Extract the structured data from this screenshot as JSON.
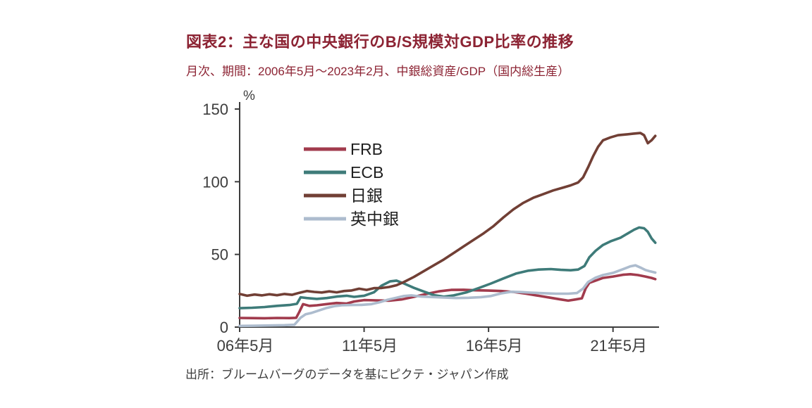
{
  "header": {
    "title": "図表2：主な国の中央銀行のB/S規模対GDP比率の推移",
    "subtitle": "月次、期間：2006年5月～2023年2月、中銀総資産/GDP（国内総生産）"
  },
  "footer": {
    "source": "出所：ブルームバーグのデータを基にピクテ・ジャパン作成"
  },
  "chart_data": {
    "type": "line",
    "title": "図表2：主な国の中央銀行のB/S規模対GDP比率の推移",
    "subtitle": "月次、期間：2006年5月～2023年2月、中銀総資産/GDP（国内総生産）",
    "unit_label": "%",
    "xlabel": "",
    "ylabel": "",
    "ylim": [
      0,
      150
    ],
    "yticks": [
      0,
      50,
      100,
      150
    ],
    "x_range": [
      2006.4,
      2023.25
    ],
    "xticks": [
      {
        "pos": 2006.4,
        "label": "06年5月"
      },
      {
        "pos": 2011.4,
        "label": "11年5月"
      },
      {
        "pos": 2016.4,
        "label": "16年5月"
      },
      {
        "pos": 2021.4,
        "label": "21年5月"
      }
    ],
    "grid": false,
    "legend_position": "inside-upper-left",
    "axis_color": "#3d3d3d",
    "series": [
      {
        "key": "frb",
        "name": "FRB",
        "color": "#a13b4d",
        "points": [
          [
            2006.4,
            6.3
          ],
          [
            2006.9,
            6.2
          ],
          [
            2007.4,
            6.1
          ],
          [
            2007.9,
            6.3
          ],
          [
            2008.4,
            6.2
          ],
          [
            2008.67,
            6.4
          ],
          [
            2008.8,
            10.5
          ],
          [
            2008.95,
            15.8
          ],
          [
            2009.2,
            14.6
          ],
          [
            2009.5,
            15.0
          ],
          [
            2009.9,
            15.8
          ],
          [
            2010.3,
            16.6
          ],
          [
            2010.7,
            16.2
          ],
          [
            2011.0,
            17.6
          ],
          [
            2011.4,
            18.6
          ],
          [
            2011.9,
            18.4
          ],
          [
            2012.4,
            18.2
          ],
          [
            2012.9,
            19.0
          ],
          [
            2013.4,
            20.8
          ],
          [
            2013.9,
            22.8
          ],
          [
            2014.4,
            24.6
          ],
          [
            2014.9,
            25.6
          ],
          [
            2015.4,
            25.7
          ],
          [
            2015.9,
            25.3
          ],
          [
            2016.4,
            25.1
          ],
          [
            2016.9,
            24.8
          ],
          [
            2017.4,
            24.2
          ],
          [
            2017.9,
            23.0
          ],
          [
            2018.4,
            21.6
          ],
          [
            2018.9,
            20.2
          ],
          [
            2019.3,
            19.0
          ],
          [
            2019.6,
            18.2
          ],
          [
            2019.9,
            19.0
          ],
          [
            2020.15,
            19.8
          ],
          [
            2020.3,
            26.5
          ],
          [
            2020.45,
            30.5
          ],
          [
            2020.7,
            32.0
          ],
          [
            2021.0,
            33.8
          ],
          [
            2021.4,
            34.8
          ],
          [
            2021.8,
            36.0
          ],
          [
            2022.1,
            36.4
          ],
          [
            2022.4,
            35.8
          ],
          [
            2022.7,
            34.8
          ],
          [
            2022.95,
            33.8
          ],
          [
            2023.1,
            33.0
          ]
        ]
      },
      {
        "key": "ecb",
        "name": "ECB",
        "color": "#3e7b79",
        "points": [
          [
            2006.4,
            13.0
          ],
          [
            2006.9,
            13.3
          ],
          [
            2007.4,
            13.8
          ],
          [
            2007.9,
            14.6
          ],
          [
            2008.4,
            15.2
          ],
          [
            2008.7,
            16.0
          ],
          [
            2008.85,
            20.5
          ],
          [
            2009.1,
            20.0
          ],
          [
            2009.5,
            19.4
          ],
          [
            2009.9,
            20.0
          ],
          [
            2010.3,
            21.0
          ],
          [
            2010.7,
            21.6
          ],
          [
            2011.0,
            20.8
          ],
          [
            2011.4,
            21.6
          ],
          [
            2011.8,
            24.0
          ],
          [
            2012.1,
            28.5
          ],
          [
            2012.45,
            31.5
          ],
          [
            2012.7,
            32.0
          ],
          [
            2013.0,
            30.0
          ],
          [
            2013.4,
            27.0
          ],
          [
            2013.8,
            24.5
          ],
          [
            2014.2,
            22.0
          ],
          [
            2014.6,
            20.9
          ],
          [
            2015.0,
            21.8
          ],
          [
            2015.5,
            23.8
          ],
          [
            2016.0,
            26.8
          ],
          [
            2016.5,
            30.0
          ],
          [
            2017.0,
            33.5
          ],
          [
            2017.5,
            36.8
          ],
          [
            2018.0,
            38.8
          ],
          [
            2018.4,
            39.6
          ],
          [
            2018.9,
            39.9
          ],
          [
            2019.3,
            39.4
          ],
          [
            2019.7,
            39.1
          ],
          [
            2020.0,
            39.6
          ],
          [
            2020.25,
            42.0
          ],
          [
            2020.45,
            48.0
          ],
          [
            2020.7,
            52.5
          ],
          [
            2021.0,
            56.5
          ],
          [
            2021.3,
            59.0
          ],
          [
            2021.7,
            61.5
          ],
          [
            2022.0,
            64.5
          ],
          [
            2022.25,
            67.0
          ],
          [
            2022.45,
            68.5
          ],
          [
            2022.65,
            68.0
          ],
          [
            2022.8,
            65.5
          ],
          [
            2022.95,
            61.0
          ],
          [
            2023.1,
            58.0
          ]
        ]
      },
      {
        "key": "boj",
        "name": "日銀",
        "color": "#713f35",
        "points": [
          [
            2006.4,
            22.8
          ],
          [
            2006.7,
            21.6
          ],
          [
            2007.0,
            22.4
          ],
          [
            2007.3,
            21.8
          ],
          [
            2007.6,
            22.6
          ],
          [
            2007.9,
            21.9
          ],
          [
            2008.2,
            22.8
          ],
          [
            2008.5,
            22.2
          ],
          [
            2008.8,
            23.6
          ],
          [
            2009.1,
            24.8
          ],
          [
            2009.4,
            24.2
          ],
          [
            2009.7,
            23.8
          ],
          [
            2010.0,
            24.6
          ],
          [
            2010.3,
            23.9
          ],
          [
            2010.6,
            24.8
          ],
          [
            2010.9,
            25.2
          ],
          [
            2011.2,
            26.4
          ],
          [
            2011.5,
            25.6
          ],
          [
            2011.8,
            26.8
          ],
          [
            2012.1,
            26.9
          ],
          [
            2012.4,
            27.6
          ],
          [
            2012.7,
            28.8
          ],
          [
            2013.0,
            31.0
          ],
          [
            2013.4,
            34.5
          ],
          [
            2013.8,
            38.5
          ],
          [
            2014.2,
            42.5
          ],
          [
            2014.6,
            46.5
          ],
          [
            2015.0,
            51.0
          ],
          [
            2015.4,
            55.5
          ],
          [
            2015.8,
            60.0
          ],
          [
            2016.2,
            64.5
          ],
          [
            2016.6,
            69.5
          ],
          [
            2017.0,
            75.5
          ],
          [
            2017.4,
            81.0
          ],
          [
            2017.8,
            85.5
          ],
          [
            2018.2,
            89.0
          ],
          [
            2018.6,
            91.5
          ],
          [
            2019.0,
            94.0
          ],
          [
            2019.4,
            96.0
          ],
          [
            2019.7,
            97.5
          ],
          [
            2020.0,
            99.5
          ],
          [
            2020.2,
            103.0
          ],
          [
            2020.4,
            110.0
          ],
          [
            2020.6,
            117.5
          ],
          [
            2020.8,
            124.0
          ],
          [
            2021.0,
            128.5
          ],
          [
            2021.3,
            130.5
          ],
          [
            2021.6,
            132.0
          ],
          [
            2021.9,
            132.5
          ],
          [
            2022.2,
            133.0
          ],
          [
            2022.5,
            133.5
          ],
          [
            2022.65,
            132.0
          ],
          [
            2022.8,
            126.5
          ],
          [
            2022.95,
            128.5
          ],
          [
            2023.1,
            131.5
          ]
        ]
      },
      {
        "key": "boe",
        "name": "英中銀",
        "color": "#adbcce",
        "points": [
          [
            2006.4,
            0.8
          ],
          [
            2007.0,
            0.9
          ],
          [
            2007.6,
            1.1
          ],
          [
            2008.2,
            1.3
          ],
          [
            2008.6,
            1.6
          ],
          [
            2008.85,
            6.5
          ],
          [
            2009.05,
            8.8
          ],
          [
            2009.3,
            9.8
          ],
          [
            2009.6,
            11.5
          ],
          [
            2009.9,
            13.2
          ],
          [
            2010.2,
            14.4
          ],
          [
            2010.5,
            15.0
          ],
          [
            2010.9,
            15.2
          ],
          [
            2011.3,
            15.3
          ],
          [
            2011.7,
            15.8
          ],
          [
            2012.0,
            17.0
          ],
          [
            2012.35,
            18.8
          ],
          [
            2012.7,
            20.2
          ],
          [
            2013.0,
            21.4
          ],
          [
            2013.3,
            21.8
          ],
          [
            2013.7,
            21.0
          ],
          [
            2014.1,
            20.7
          ],
          [
            2014.6,
            20.3
          ],
          [
            2015.1,
            20.0
          ],
          [
            2015.6,
            20.2
          ],
          [
            2016.1,
            20.6
          ],
          [
            2016.5,
            21.4
          ],
          [
            2016.9,
            23.2
          ],
          [
            2017.3,
            24.3
          ],
          [
            2017.7,
            24.1
          ],
          [
            2018.1,
            23.7
          ],
          [
            2018.6,
            23.3
          ],
          [
            2019.1,
            23.0
          ],
          [
            2019.6,
            23.0
          ],
          [
            2019.95,
            23.4
          ],
          [
            2020.2,
            26.5
          ],
          [
            2020.4,
            31.0
          ],
          [
            2020.7,
            34.0
          ],
          [
            2021.0,
            35.8
          ],
          [
            2021.4,
            37.3
          ],
          [
            2021.8,
            39.8
          ],
          [
            2022.1,
            41.8
          ],
          [
            2022.3,
            42.5
          ],
          [
            2022.5,
            41.0
          ],
          [
            2022.7,
            39.3
          ],
          [
            2022.9,
            38.3
          ],
          [
            2023.1,
            37.5
          ]
        ]
      }
    ]
  }
}
